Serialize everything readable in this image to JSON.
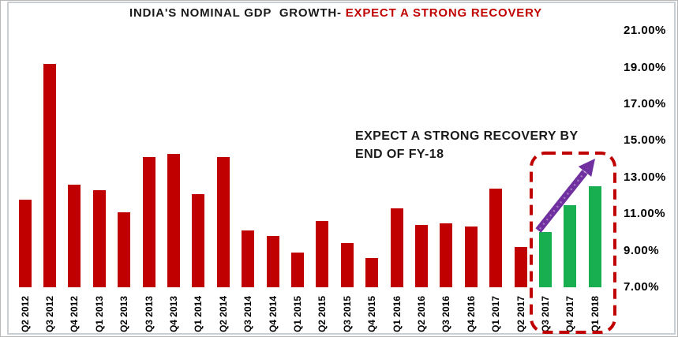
{
  "title": {
    "black_part": "INDIA'S NOMINAL GDP  GROWTH-",
    "red_part": " EXPECT A STRONG RECOVERY"
  },
  "annotation": {
    "line1": "EXPECT A STRONG RECOVERY BY",
    "line2": "END OF FY-18"
  },
  "chart_data": {
    "type": "bar",
    "title": "INDIA'S NOMINAL GDP GROWTH- EXPECT A STRONG RECOVERY",
    "categories": [
      "Q2 2012",
      "Q3 2012",
      "Q4 2012",
      "Q1 2013",
      "Q2 2013",
      "Q3 2013",
      "Q4 2013",
      "Q1 2014",
      "Q2 2014",
      "Q3 2014",
      "Q4 2014",
      "Q1 2015",
      "Q2 2015",
      "Q3 2015",
      "Q4 2015",
      "Q1 2016",
      "Q2 2016",
      "Q3 2016",
      "Q4 2016",
      "Q1 2017",
      "Q2 2017",
      "Q3 2017",
      "Q4 2017",
      "Q1 2018"
    ],
    "values": [
      11.8,
      19.2,
      12.6,
      12.3,
      11.1,
      14.1,
      14.3,
      12.1,
      14.1,
      10.1,
      9.8,
      8.9,
      10.6,
      9.4,
      8.6,
      11.3,
      10.4,
      10.5,
      10.3,
      12.4,
      9.2,
      10.0,
      11.5,
      12.5
    ],
    "forecast_categories": [
      "Q3 2017",
      "Q4 2017",
      "Q1 2018"
    ],
    "unit": "percent",
    "ylim": [
      7,
      21
    ],
    "ytick_values": [
      7,
      9,
      11,
      13,
      15,
      17,
      19,
      21
    ],
    "ytick_labels": [
      "7.00%",
      "9.00%",
      "11.00%",
      "13.00%",
      "15.00%",
      "17.00%",
      "19.00%",
      "21.00%"
    ],
    "axis_side": "right",
    "grid": false,
    "legend": null,
    "annotation_text": "EXPECT A STRONG RECOVERY BY END OF FY-18"
  },
  "colors": {
    "historical_bar": "#C00000",
    "forecast_bar": "#17AF50",
    "title_accent": "#C00000",
    "arrow": "#7030A0",
    "highlight_box": "#C00000",
    "chart_border": "#C9CED3"
  }
}
